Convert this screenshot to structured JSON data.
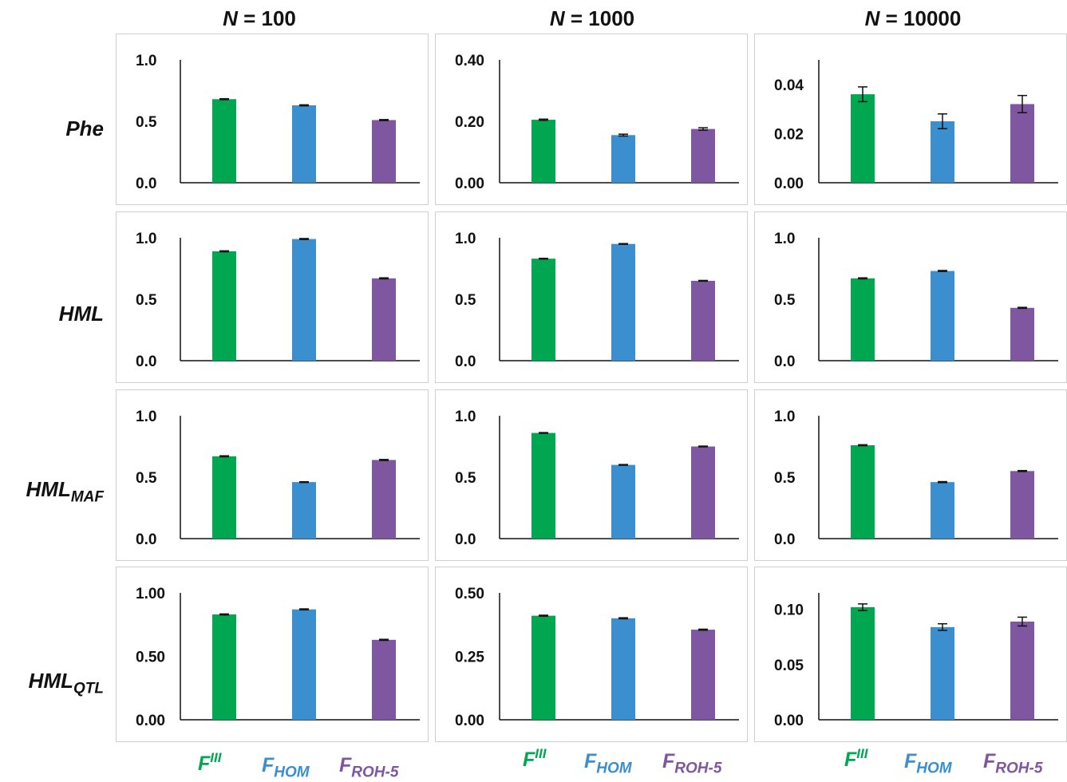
{
  "figure": {
    "columns": [
      {
        "n_label": "N",
        "n_value": "= 100"
      },
      {
        "n_label": "N",
        "n_value": "= 1000"
      },
      {
        "n_label": "N",
        "n_value": "= 10000"
      }
    ],
    "rows": [
      {
        "label": "Phe",
        "sub": ""
      },
      {
        "label": "HML",
        "sub": ""
      },
      {
        "label": "HML",
        "sub": "MAF"
      },
      {
        "label": "HML",
        "sub": "QTL"
      }
    ],
    "x_labels": [
      {
        "base": "F",
        "sup": "III",
        "sub": "",
        "color": "#00a650"
      },
      {
        "base": "F",
        "sup": "",
        "sub": "HOM",
        "color": "#3b8fce"
      },
      {
        "base": "F",
        "sup": "",
        "sub": "ROH-5",
        "color": "#7f56a0"
      }
    ],
    "colors": {
      "fIII": "#00a650",
      "fHOM": "#3b8fce",
      "fROH5": "#7f56a0",
      "axis": "#111111",
      "border": "#cfcfcf"
    }
  },
  "chart_data": [
    {
      "type": "bar",
      "row": "Phe",
      "column": "N = 100",
      "categories": [
        "FIII",
        "FHOM",
        "FROH-5"
      ],
      "values": [
        0.68,
        0.63,
        0.51
      ],
      "errors": [
        0.004,
        0.004,
        0.004
      ],
      "ylim": [
        0,
        1.0
      ],
      "yticks": [
        "0.0",
        "0.5",
        "1.0"
      ]
    },
    {
      "type": "bar",
      "row": "Phe",
      "column": "N = 1000",
      "categories": [
        "FIII",
        "FHOM",
        "FROH-5"
      ],
      "values": [
        0.205,
        0.155,
        0.175
      ],
      "errors": [
        0.002,
        0.003,
        0.004
      ],
      "ylim": [
        0,
        0.4
      ],
      "yticks": [
        "0.00",
        "0.20",
        "0.40"
      ]
    },
    {
      "type": "bar",
      "row": "Phe",
      "column": "N = 10000",
      "categories": [
        "FIII",
        "FHOM",
        "FROH-5"
      ],
      "values": [
        0.036,
        0.025,
        0.032
      ],
      "errors": [
        0.003,
        0.003,
        0.0035
      ],
      "ylim": [
        0,
        0.05
      ],
      "yticks": [
        "0.00",
        "0.02",
        "0.04"
      ]
    },
    {
      "type": "bar",
      "row": "HML",
      "column": "N = 100",
      "categories": [
        "FIII",
        "FHOM",
        "FROH-5"
      ],
      "values": [
        0.89,
        0.99,
        0.67
      ],
      "errors": [
        0.004,
        0.004,
        0.004
      ],
      "ylim": [
        0,
        1.0
      ],
      "yticks": [
        "0.0",
        "0.5",
        "1.0"
      ]
    },
    {
      "type": "bar",
      "row": "HML",
      "column": "N = 1000",
      "categories": [
        "FIII",
        "FHOM",
        "FROH-5"
      ],
      "values": [
        0.83,
        0.95,
        0.65
      ],
      "errors": [
        0.003,
        0.003,
        0.003
      ],
      "ylim": [
        0,
        1.0
      ],
      "yticks": [
        "0.0",
        "0.5",
        "1.0"
      ]
    },
    {
      "type": "bar",
      "row": "HML",
      "column": "N = 10000",
      "categories": [
        "FIII",
        "FHOM",
        "FROH-5"
      ],
      "values": [
        0.67,
        0.73,
        0.43
      ],
      "errors": [
        0.004,
        0.004,
        0.004
      ],
      "ylim": [
        0,
        1.0
      ],
      "yticks": [
        "0.0",
        "0.5",
        "1.0"
      ]
    },
    {
      "type": "bar",
      "row": "HML_MAF",
      "column": "N = 100",
      "categories": [
        "FIII",
        "FHOM",
        "FROH-5"
      ],
      "values": [
        0.67,
        0.46,
        0.64
      ],
      "errors": [
        0.004,
        0.003,
        0.004
      ],
      "ylim": [
        0,
        1.0
      ],
      "yticks": [
        "0.0",
        "0.5",
        "1.0"
      ]
    },
    {
      "type": "bar",
      "row": "HML_MAF",
      "column": "N = 1000",
      "categories": [
        "FIII",
        "FHOM",
        "FROH-5"
      ],
      "values": [
        0.86,
        0.6,
        0.75
      ],
      "errors": [
        0.003,
        0.003,
        0.003
      ],
      "ylim": [
        0,
        1.0
      ],
      "yticks": [
        "0.0",
        "0.5",
        "1.0"
      ]
    },
    {
      "type": "bar",
      "row": "HML_MAF",
      "column": "N = 10000",
      "categories": [
        "FIII",
        "FHOM",
        "FROH-5"
      ],
      "values": [
        0.76,
        0.46,
        0.55
      ],
      "errors": [
        0.004,
        0.004,
        0.004
      ],
      "ylim": [
        0,
        1.0
      ],
      "yticks": [
        "0.0",
        "0.5",
        "1.0"
      ]
    },
    {
      "type": "bar",
      "row": "HML_QTL",
      "column": "N = 100",
      "categories": [
        "FIII",
        "FHOM",
        "FROH-5"
      ],
      "values": [
        0.83,
        0.87,
        0.63
      ],
      "errors": [
        0.004,
        0.004,
        0.004
      ],
      "ylim": [
        0,
        1.0
      ],
      "yticks": [
        "0.00",
        "0.50",
        "1.00"
      ]
    },
    {
      "type": "bar",
      "row": "HML_QTL",
      "column": "N = 1000",
      "categories": [
        "FIII",
        "FHOM",
        "FROH-5"
      ],
      "values": [
        0.41,
        0.4,
        0.355
      ],
      "errors": [
        0.002,
        0.002,
        0.002
      ],
      "ylim": [
        0,
        0.5
      ],
      "yticks": [
        "0.00",
        "0.25",
        "0.50"
      ]
    },
    {
      "type": "bar",
      "row": "HML_QTL",
      "column": "N = 10000",
      "categories": [
        "FIII",
        "FHOM",
        "FROH-5"
      ],
      "values": [
        0.102,
        0.084,
        0.089
      ],
      "errors": [
        0.003,
        0.003,
        0.004
      ],
      "ylim": [
        0,
        0.115
      ],
      "yticks": [
        "0.00",
        "0.05",
        "0.10"
      ]
    }
  ]
}
